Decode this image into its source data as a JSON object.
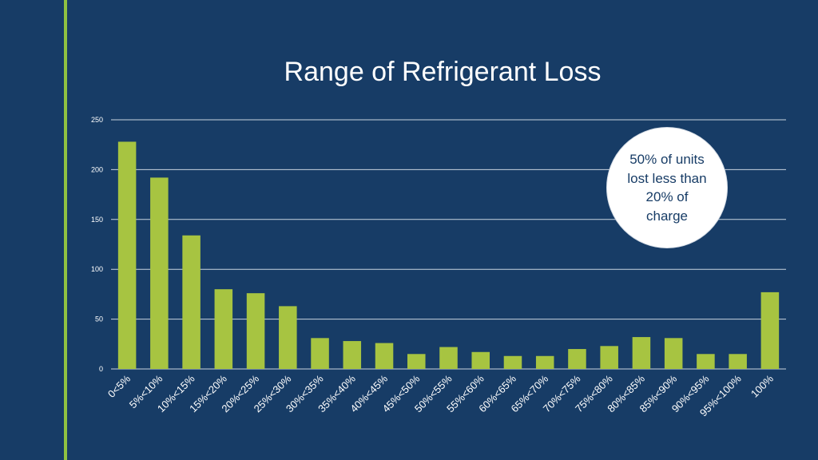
{
  "slide": {
    "title": "Range of Refrigerant Loss",
    "callout": "50% of units lost less than 20% of charge"
  },
  "colors": {
    "background": "#173c66",
    "bar": "#a7c441",
    "accent": "#8fc241",
    "gridline": "#c9d3df",
    "text": "#ffffff",
    "callout_fill": "#ffffff",
    "callout_text": "#173c66"
  },
  "chart_data": {
    "type": "bar",
    "title": "Range of Refrigerant Loss",
    "xlabel": "",
    "ylabel": "",
    "ylim": [
      0,
      250
    ],
    "yticks": [
      0,
      50,
      100,
      150,
      200,
      250
    ],
    "grid": true,
    "legend": "none",
    "categories": [
      "0<5%",
      "5%<10%",
      "10%<15%",
      "15%<20%",
      "20%<25%",
      "25%<30%",
      "30%<35%",
      "35%<40%",
      "40%<45%",
      "45%<50%",
      "50%<55%",
      "55%<60%",
      "60%<65%",
      "65%<70%",
      "70%<75%",
      "75%<80%",
      "80%<85%",
      "85%<90%",
      "90%<95%",
      "95%<100%",
      "100%"
    ],
    "values": [
      228,
      192,
      134,
      80,
      76,
      63,
      31,
      28,
      26,
      15,
      22,
      17,
      13,
      13,
      20,
      23,
      32,
      31,
      15,
      15,
      77
    ]
  }
}
